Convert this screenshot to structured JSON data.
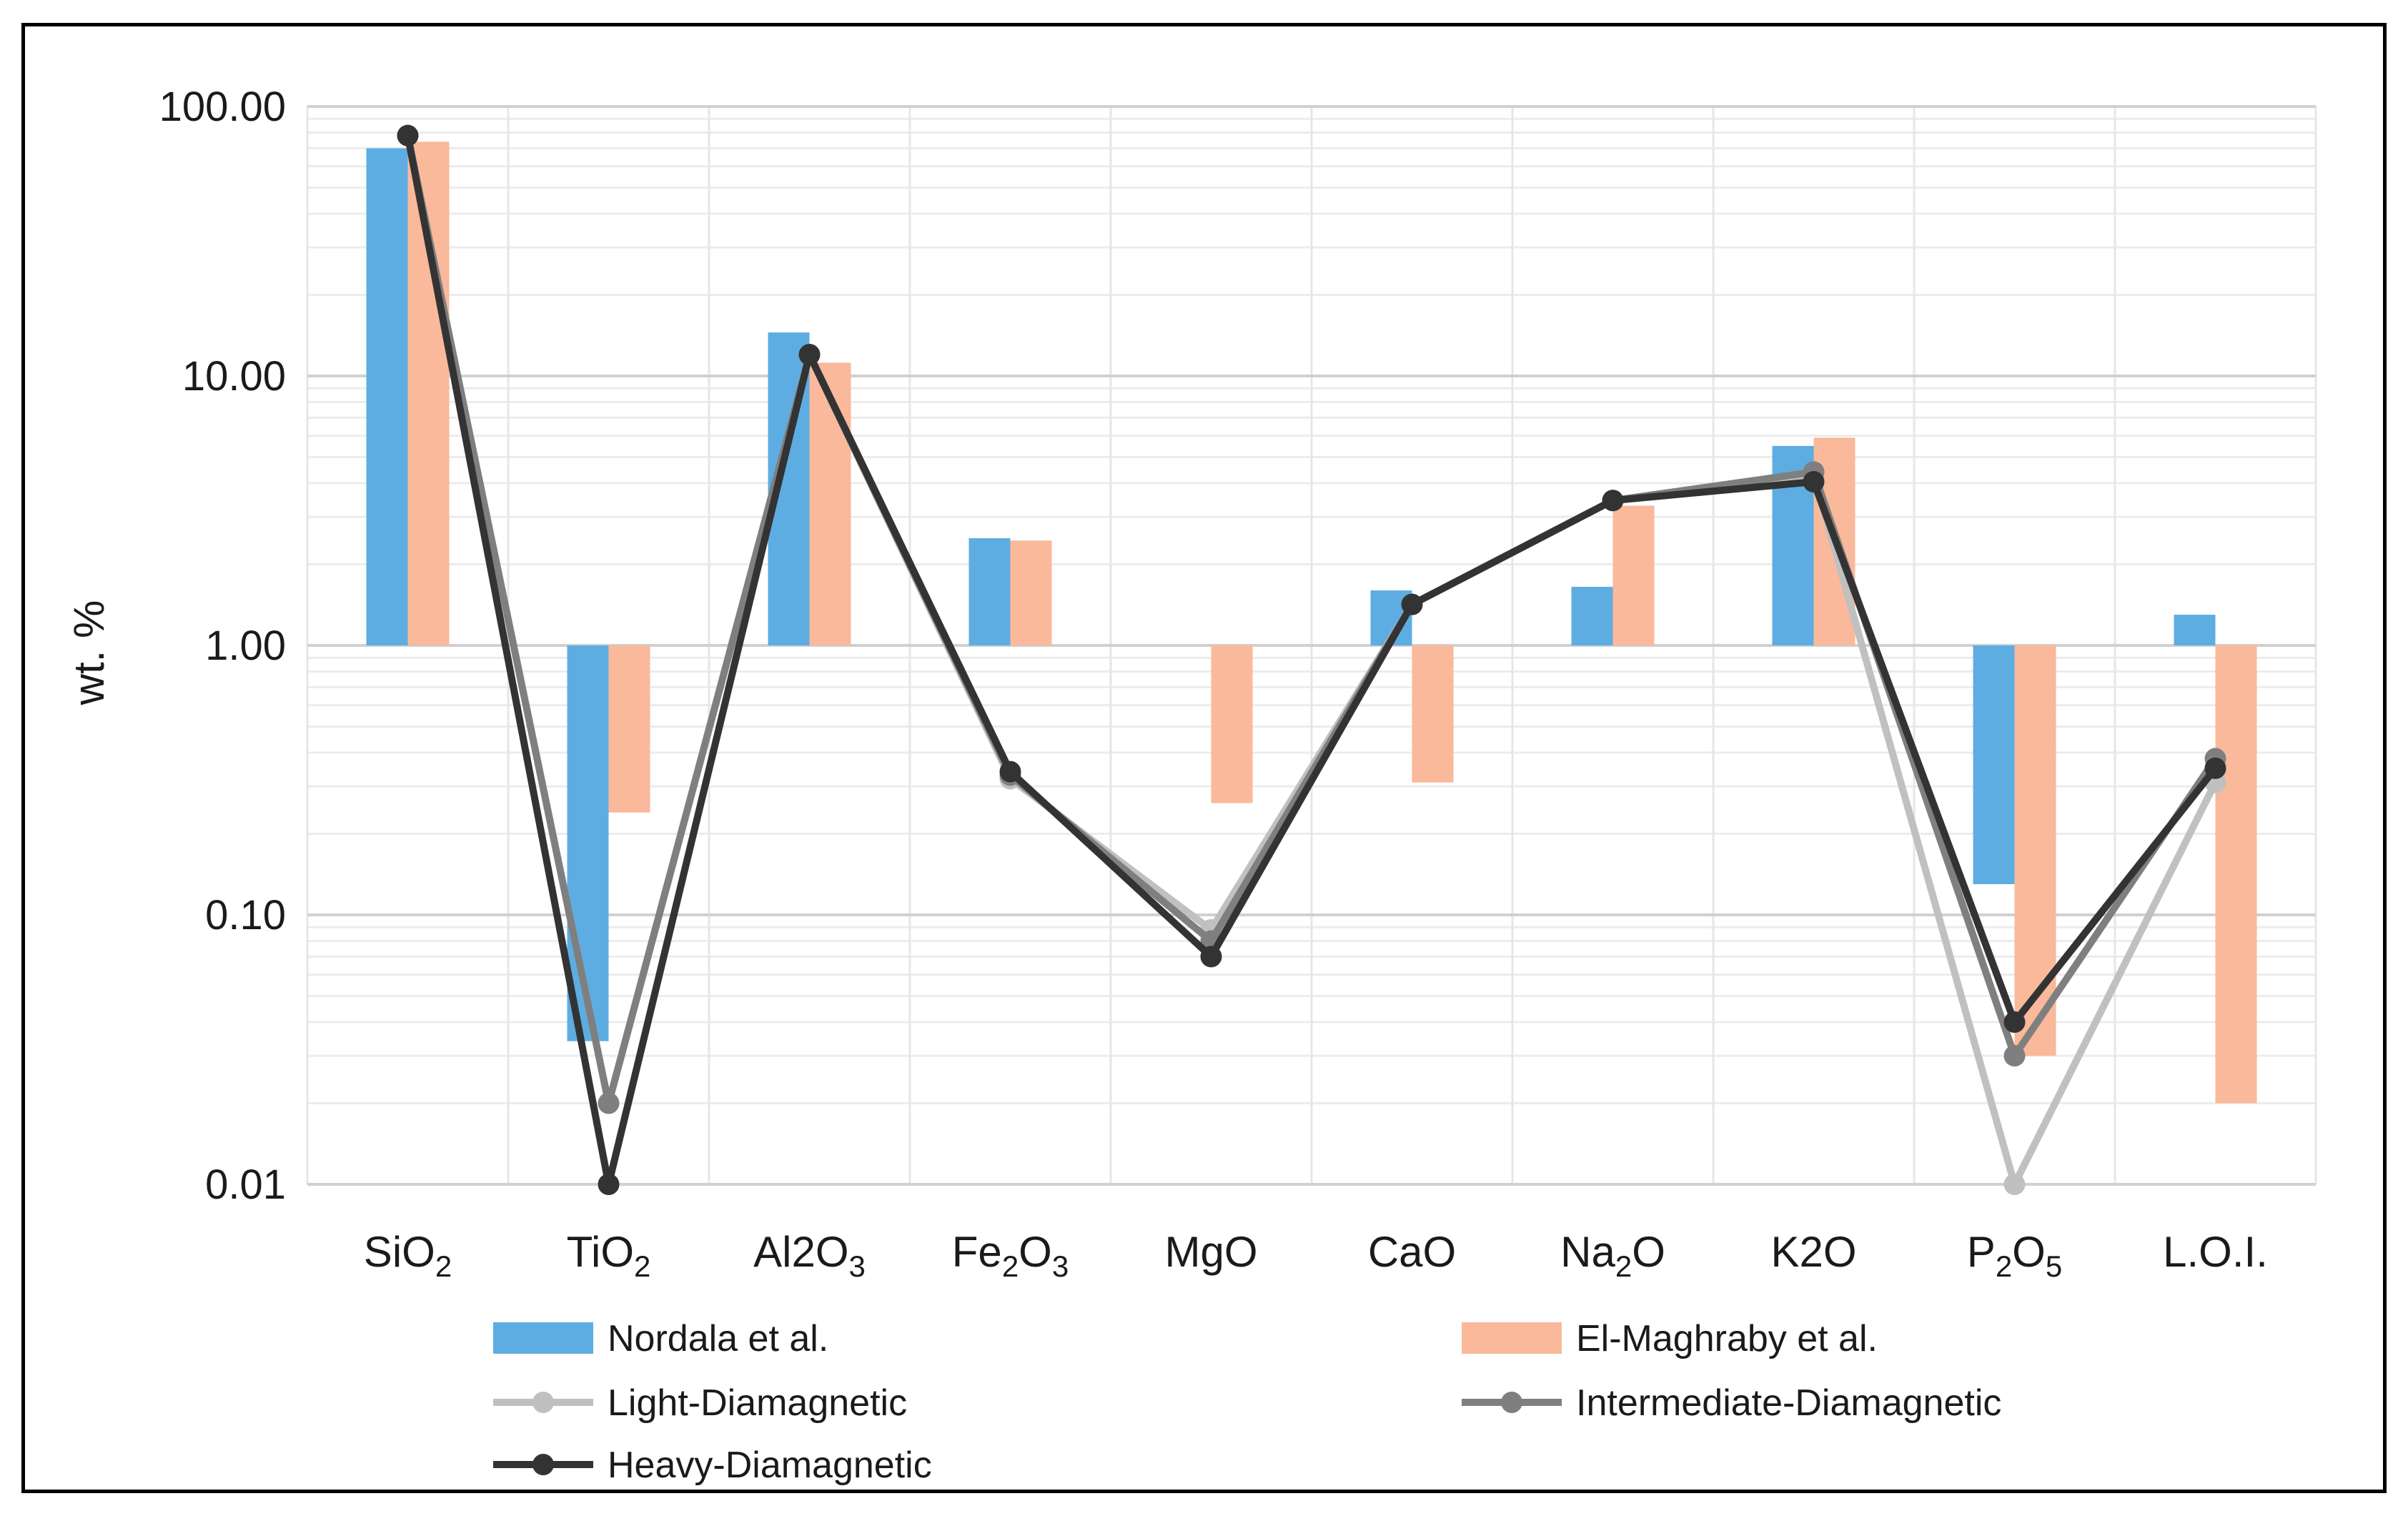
{
  "chart_data": {
    "type": "bar+line",
    "title": "",
    "xlabel": "",
    "ylabel": "wt. %",
    "yscale": "log",
    "ylim": [
      0.01,
      100
    ],
    "ybase": 1,
    "y_ticks": [
      "0.01",
      "0.10",
      "1.00",
      "10.00",
      "100.00"
    ],
    "grid": true,
    "categories": [
      {
        "base": "SiO",
        "sub": "2",
        "tail": ""
      },
      {
        "base": "TiO",
        "sub": "2",
        "tail": ""
      },
      {
        "base": "Al2O",
        "sub": "3",
        "tail": ""
      },
      {
        "base": "Fe",
        "sub": "2",
        "tail": "O",
        "sub2": "3"
      },
      {
        "base": "MgO",
        "sub": "",
        "tail": ""
      },
      {
        "base": "CaO",
        "sub": "",
        "tail": ""
      },
      {
        "base": "Na",
        "sub": "2",
        "tail": "O"
      },
      {
        "base": "K2O",
        "sub": "",
        "tail": ""
      },
      {
        "base": "P",
        "sub": "2",
        "tail": "O",
        "sub2": "5"
      },
      {
        "base": "L.O.I.",
        "sub": "",
        "tail": ""
      }
    ],
    "bar_series": [
      {
        "name": "Nordala et al.",
        "color": "#5DADE2",
        "values": [
          70.0,
          0.034,
          14.5,
          2.5,
          null,
          1.6,
          1.65,
          5.5,
          0.13,
          1.3
        ]
      },
      {
        "name": "El-Maghraby et al.",
        "color": "#F9B99A",
        "values": [
          74.0,
          0.24,
          11.2,
          2.45,
          0.26,
          0.31,
          3.3,
          5.9,
          0.03,
          0.02
        ]
      }
    ],
    "line_series": [
      {
        "name": "Light-Diamagnetic",
        "color": "#C0C0C0",
        "values": [
          78.0,
          0.02,
          12.0,
          0.32,
          0.088,
          1.42,
          3.45,
          4.3,
          0.01,
          0.31
        ]
      },
      {
        "name": "Intermediate-Diamagnetic",
        "color": "#7F7F7F",
        "values": [
          78.0,
          0.02,
          12.0,
          0.33,
          0.08,
          1.42,
          3.45,
          4.4,
          0.03,
          0.38
        ]
      },
      {
        "name": "Heavy-Diamagnetic",
        "color": "#333333",
        "values": [
          78.0,
          0.01,
          12.0,
          0.34,
          0.07,
          1.42,
          3.45,
          4.05,
          0.04,
          0.35
        ]
      }
    ],
    "legend_position": "bottom"
  }
}
